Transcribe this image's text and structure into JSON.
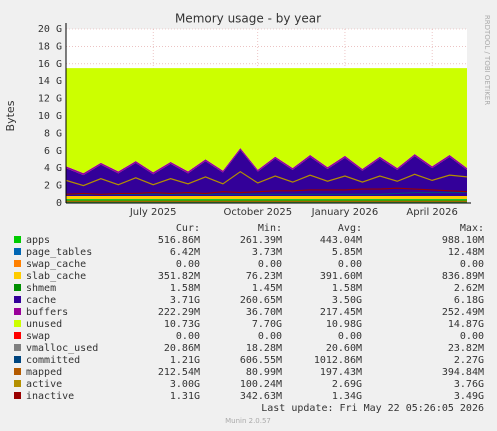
{
  "chart_data": {
    "type": "area",
    "title": "Memory usage - by year",
    "y_label": "Bytes",
    "side_label": "RRDTOOL / TOBI OETIKER",
    "footer": "Last update: Fri May 22 05:26:05 2026",
    "version": "Munin 2.0.57",
    "columns": [
      "Cur:",
      "Min:",
      "Avg:",
      "Max:"
    ],
    "categories": [
      null,
      null,
      null,
      null,
      null,
      "July 2025",
      null,
      null,
      null,
      null,
      null,
      "October 2025",
      null,
      null,
      null,
      null,
      "January 2026",
      null,
      null,
      null,
      null,
      "April 2026",
      null,
      null
    ],
    "ylim": [
      0,
      20
    ],
    "yticks": [
      {
        "value": 0,
        "label": "0"
      },
      {
        "value": 2,
        "label": "2 G"
      },
      {
        "value": 4,
        "label": "4 G"
      },
      {
        "value": 6,
        "label": "6 G"
      },
      {
        "value": 8,
        "label": "8 G"
      },
      {
        "value": 10,
        "label": "10 G"
      },
      {
        "value": 12,
        "label": "12 G"
      },
      {
        "value": 14,
        "label": "14 G"
      },
      {
        "value": 16,
        "label": "16 G"
      },
      {
        "value": 18,
        "label": "18 G"
      },
      {
        "value": 20,
        "label": "20 G"
      }
    ],
    "grid": true,
    "series": [
      {
        "name": "apps",
        "color": "#00cc00",
        "style": "area",
        "stats": [
          "516.86M",
          "261.39M",
          "443.04M",
          "988.10M"
        ],
        "values": [
          0.45,
          0.45,
          0.45,
          0.45,
          0.45,
          0.45,
          0.45,
          0.45,
          0.45,
          0.45,
          0.45,
          0.45,
          0.45,
          0.45,
          0.45,
          0.45,
          0.45,
          0.45,
          0.45,
          0.45,
          0.45,
          0.45,
          0.45,
          0.45
        ]
      },
      {
        "name": "page_tables",
        "color": "#0066b3",
        "style": "area",
        "stats": [
          "6.42M",
          "3.73M",
          "5.85M",
          "12.48M"
        ],
        "values": [
          0.006,
          0.006,
          0.006,
          0.006,
          0.006,
          0.006,
          0.006,
          0.006,
          0.006,
          0.006,
          0.006,
          0.006,
          0.006,
          0.006,
          0.006,
          0.006,
          0.006,
          0.006,
          0.006,
          0.006,
          0.006,
          0.006,
          0.006,
          0.006
        ]
      },
      {
        "name": "swap_cache",
        "color": "#ff8000",
        "style": "area",
        "stats": [
          "0.00",
          "0.00",
          "0.00",
          "0.00"
        ],
        "values": [
          0,
          0,
          0,
          0,
          0,
          0,
          0,
          0,
          0,
          0,
          0,
          0,
          0,
          0,
          0,
          0,
          0,
          0,
          0,
          0,
          0,
          0,
          0,
          0
        ]
      },
      {
        "name": "slab_cache",
        "color": "#ffcc00",
        "style": "area",
        "stats": [
          "351.82M",
          "76.23M",
          "391.60M",
          "836.89M"
        ],
        "values": [
          0.35,
          0.35,
          0.35,
          0.35,
          0.35,
          0.35,
          0.35,
          0.35,
          0.35,
          0.35,
          0.35,
          0.35,
          0.35,
          0.35,
          0.35,
          0.35,
          0.35,
          0.35,
          0.35,
          0.35,
          0.35,
          0.35,
          0.35,
          0.35
        ]
      },
      {
        "name": "shmem",
        "color": "#008f00",
        "style": "area",
        "stats": [
          "1.58M",
          "1.45M",
          "1.58M",
          "2.62M"
        ],
        "values": [
          0.002,
          0.002,
          0.002,
          0.002,
          0.002,
          0.002,
          0.002,
          0.002,
          0.002,
          0.002,
          0.002,
          0.002,
          0.002,
          0.002,
          0.002,
          0.002,
          0.002,
          0.002,
          0.002,
          0.002,
          0.002,
          0.002,
          0.002,
          0.002
        ]
      },
      {
        "name": "cache",
        "color": "#330099",
        "style": "area",
        "stats": [
          "3.71G",
          "260.65M",
          "3.50G",
          "6.18G"
        ],
        "values": [
          3.2,
          2.4,
          3.6,
          2.6,
          3.8,
          2.5,
          3.7,
          2.6,
          4.0,
          2.7,
          5.3,
          2.8,
          4.3,
          3.0,
          4.5,
          3.1,
          4.4,
          2.9,
          4.3,
          3.0,
          4.6,
          3.2,
          4.5,
          3.0
        ]
      },
      {
        "name": "buffers",
        "color": "#990099",
        "style": "area",
        "stats": [
          "222.29M",
          "36.70M",
          "217.45M",
          "252.49M"
        ],
        "values": [
          0.22,
          0.22,
          0.22,
          0.22,
          0.22,
          0.22,
          0.22,
          0.22,
          0.22,
          0.22,
          0.22,
          0.22,
          0.22,
          0.22,
          0.22,
          0.22,
          0.22,
          0.22,
          0.22,
          0.22,
          0.22,
          0.22,
          0.22,
          0.22
        ]
      },
      {
        "name": "unused",
        "color": "#ccff00",
        "style": "area",
        "stats": [
          "10.73G",
          "7.70G",
          "10.98G",
          "14.87G"
        ],
        "values": [
          11.27,
          12.07,
          10.87,
          11.87,
          10.67,
          11.97,
          10.77,
          11.87,
          10.47,
          11.77,
          9.17,
          11.67,
          10.17,
          11.47,
          9.97,
          11.37,
          10.07,
          11.57,
          10.17,
          11.47,
          9.87,
          11.27,
          9.97,
          11.47
        ]
      },
      {
        "name": "swap",
        "color": "#ff0000",
        "style": "area",
        "stats": [
          "0.00",
          "0.00",
          "0.00",
          "0.00"
        ],
        "values": [
          0,
          0,
          0,
          0,
          0,
          0,
          0,
          0,
          0,
          0,
          0,
          0,
          0,
          0,
          0,
          0,
          0,
          0,
          0,
          0,
          0,
          0,
          0,
          0
        ]
      },
      {
        "name": "vmalloc_used",
        "color": "#808080",
        "style": "line",
        "stats": [
          "20.86M",
          "18.28M",
          "20.60M",
          "23.82M"
        ],
        "values": [
          0.02,
          0.02,
          0.02,
          0.02,
          0.02,
          0.02,
          0.02,
          0.02,
          0.02,
          0.02,
          0.02,
          0.02,
          0.02,
          0.02,
          0.02,
          0.02,
          0.02,
          0.02,
          0.02,
          0.02,
          0.02,
          0.02,
          0.02,
          0.02
        ]
      },
      {
        "name": "committed",
        "color": "#00457f",
        "style": "line",
        "stats": [
          "1.21G",
          "606.55M",
          "1012.86M",
          "2.27G"
        ],
        "values": [
          1.0,
          1.0,
          1.0,
          1.0,
          1.0,
          1.0,
          1.0,
          1.0,
          1.0,
          1.0,
          1.0,
          1.0,
          1.0,
          1.0,
          1.0,
          1.0,
          1.0,
          1.0,
          1.0,
          1.1,
          1.2,
          1.2,
          1.2,
          1.2
        ]
      },
      {
        "name": "mapped",
        "color": "#b35a00",
        "style": "line",
        "stats": [
          "212.54M",
          "80.99M",
          "197.43M",
          "394.84M"
        ],
        "values": [
          0.2,
          0.2,
          0.2,
          0.2,
          0.2,
          0.2,
          0.2,
          0.2,
          0.2,
          0.2,
          0.2,
          0.2,
          0.2,
          0.2,
          0.2,
          0.2,
          0.2,
          0.2,
          0.2,
          0.2,
          0.2,
          0.2,
          0.2,
          0.2
        ]
      },
      {
        "name": "active",
        "color": "#b38f00",
        "style": "line",
        "stats": [
          "3.00G",
          "100.24M",
          "2.69G",
          "3.76G"
        ],
        "values": [
          2.6,
          2.0,
          2.8,
          2.1,
          2.9,
          2.1,
          2.8,
          2.2,
          3.0,
          2.2,
          3.6,
          2.3,
          3.1,
          2.4,
          3.2,
          2.5,
          3.1,
          2.4,
          3.1,
          2.5,
          3.3,
          2.6,
          3.2,
          3.0
        ]
      },
      {
        "name": "inactive",
        "color": "#990000",
        "style": "line",
        "stats": [
          "1.31G",
          "342.63M",
          "1.34G",
          "3.49G"
        ],
        "values": [
          1.0,
          1.1,
          1.0,
          1.1,
          1.1,
          1.2,
          1.1,
          1.2,
          1.1,
          1.3,
          1.2,
          1.3,
          1.4,
          1.4,
          1.5,
          1.5,
          1.5,
          1.6,
          1.6,
          1.7,
          1.6,
          1.5,
          1.4,
          1.3
        ]
      }
    ]
  }
}
